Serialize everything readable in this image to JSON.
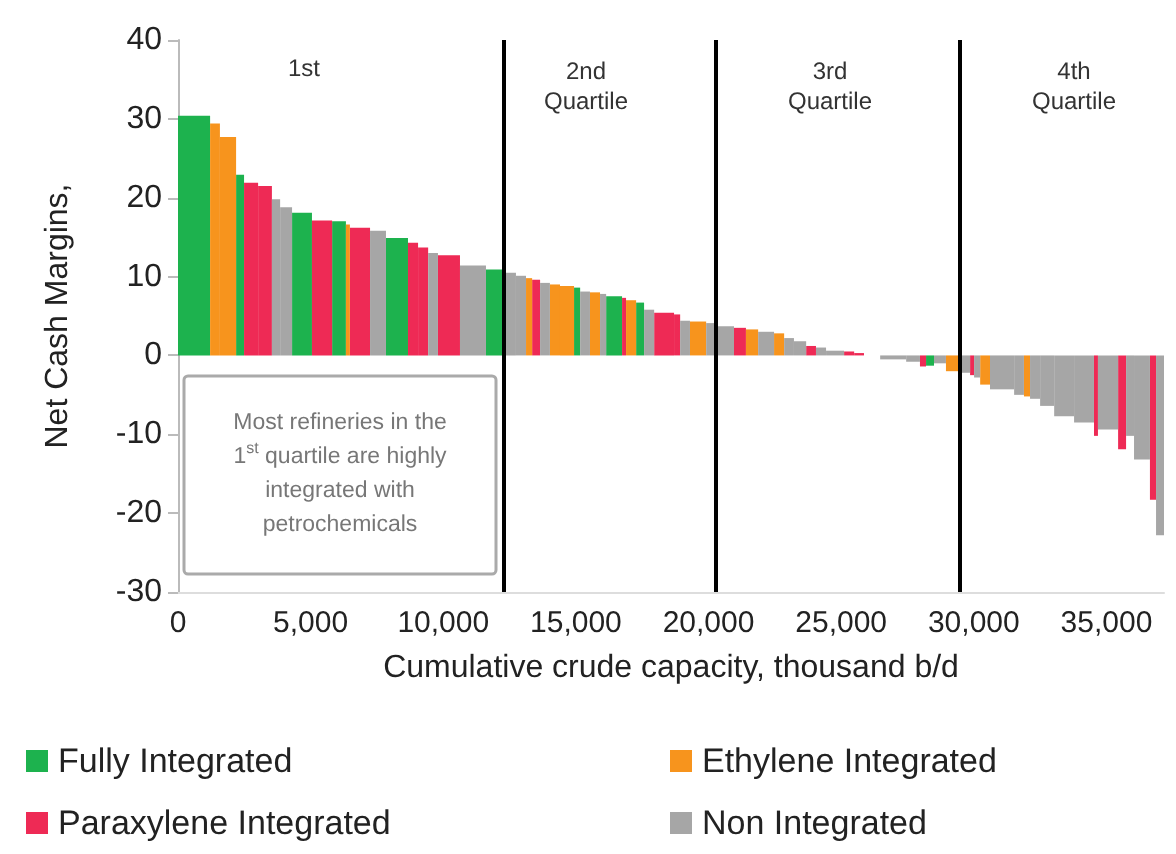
{
  "chart_data": {
    "type": "histogram",
    "ylabel": "Net Cash Margins,",
    "xlabel": "Cumulative crude capacity, thousand b/d",
    "bins": [
      0,
      1210,
      1580,
      2190,
      2490,
      3020,
      3540,
      3850,
      4300,
      5050,
      5810,
      6330,
      6480,
      7240,
      7840,
      8670,
      9050,
      9430,
      9800,
      10630,
      11610,
      12290,
      12740,
      13120,
      13350,
      13650,
      14020,
      14400,
      14930,
      15160,
      15530,
      15910,
      16140,
      16740,
      16890,
      17270,
      17570,
      17950,
      18700,
      18930,
      19300,
      19910,
      20280,
      20960,
      21410,
      21870,
      22470,
      22850,
      23220,
      23680,
      24050,
      24430,
      25110,
      25490,
      25860,
      26470,
      27450,
      27970,
      28200,
      28500,
      28950,
      29410,
      29860,
      30010,
      30240,
      30610,
      31520,
      31890,
      32120,
      32500,
      33030,
      33780,
      34530,
      34680,
      35440,
      35740,
      36040,
      36640,
      36870,
      37170
    ],
    "series": [
      {
        "name": "Fully Integrated",
        "color": "#1db24e",
        "values": [
          30.4,
          null,
          null,
          22.9,
          null,
          null,
          null,
          null,
          18.1,
          null,
          17,
          null,
          null,
          null,
          14.9,
          null,
          null,
          null,
          null,
          null,
          10.9,
          null,
          null,
          null,
          null,
          null,
          null,
          null,
          8.6,
          null,
          null,
          null,
          7.5,
          null,
          null,
          6.7,
          null,
          null,
          null,
          null,
          null,
          null,
          null,
          null,
          null,
          null,
          null,
          null,
          null,
          null,
          null,
          null,
          null,
          null,
          null,
          null,
          null,
          null,
          -1.3,
          null,
          null,
          null,
          null,
          null,
          null,
          null,
          null,
          null,
          null,
          null,
          null,
          null,
          null,
          null,
          null,
          null,
          null,
          null,
          null
        ]
      },
      {
        "name": "Paraxylene Integrated",
        "color": "#ee2a55",
        "values": [
          null,
          null,
          null,
          null,
          21.9,
          21.5,
          null,
          null,
          null,
          17.1,
          null,
          null,
          16.2,
          null,
          null,
          14.3,
          13.7,
          null,
          12.7,
          null,
          null,
          null,
          null,
          null,
          9.6,
          null,
          null,
          null,
          null,
          null,
          null,
          null,
          null,
          7.3,
          null,
          null,
          null,
          5.4,
          5.2,
          null,
          null,
          null,
          null,
          3.5,
          null,
          null,
          null,
          null,
          null,
          1.2,
          null,
          null,
          0.5,
          0.3,
          null,
          null,
          null,
          -1.4,
          null,
          null,
          null,
          null,
          -2.5,
          null,
          null,
          null,
          null,
          null,
          null,
          null,
          null,
          null,
          -10.2,
          null,
          -11.9,
          null,
          null,
          -18.3,
          null
        ]
      },
      {
        "name": "Ethylene Integrated",
        "color": "#f7941d",
        "values": [
          null,
          29.4,
          27.7,
          null,
          null,
          null,
          null,
          null,
          null,
          null,
          null,
          16.6,
          null,
          null,
          null,
          null,
          null,
          null,
          null,
          null,
          null,
          null,
          null,
          9.8,
          null,
          null,
          9,
          8.8,
          null,
          null,
          8,
          null,
          null,
          null,
          7,
          null,
          null,
          null,
          null,
          null,
          4.3,
          null,
          null,
          null,
          3.3,
          null,
          2.8,
          null,
          null,
          null,
          null,
          null,
          null,
          null,
          null,
          null,
          null,
          null,
          null,
          null,
          -2,
          null,
          null,
          null,
          -3.7,
          null,
          null,
          -5.2,
          null,
          null,
          null,
          null,
          null,
          null,
          null,
          null,
          null,
          null,
          null
        ]
      },
      {
        "name": "Non Integrated",
        "color": "#a6a6a6",
        "values": [
          null,
          null,
          null,
          null,
          null,
          null,
          19.8,
          18.8,
          null,
          null,
          null,
          null,
          null,
          15.8,
          null,
          null,
          null,
          13,
          null,
          11.4,
          null,
          10.5,
          10.1,
          null,
          null,
          9.2,
          null,
          null,
          null,
          8.1,
          null,
          7.8,
          null,
          null,
          null,
          null,
          5.8,
          null,
          null,
          4.4,
          null,
          4.1,
          3.7,
          null,
          null,
          3,
          null,
          2.2,
          1.8,
          null,
          1,
          0.6,
          null,
          null,
          null,
          -0.5,
          -0.8,
          null,
          null,
          -1,
          null,
          -2.2,
          null,
          -2.8,
          null,
          -4.3,
          -5,
          null,
          -5.5,
          -6.4,
          -7.7,
          -8.5,
          null,
          -9.4,
          null,
          -10.2,
          -13.2,
          null,
          -22.8
        ]
      }
    ],
    "xlim": [
      0,
      37170
    ],
    "ylim": [
      -30,
      40
    ],
    "xticks": [
      0,
      {
        "value": 5000,
        "label": "5,000"
      },
      {
        "value": 10000,
        "label": "10,000"
      },
      {
        "value": 15000,
        "label": "15,000"
      },
      {
        "value": 20000,
        "label": "20,000"
      },
      {
        "value": 25000,
        "label": "25,000"
      },
      {
        "value": 30000,
        "label": "30,000"
      },
      {
        "value": 35000,
        "label": "35,000"
      }
    ],
    "yticks": [
      -30,
      -20,
      -10,
      0,
      10,
      20,
      30,
      40
    ],
    "ref_lines": [
      {
        "axis": "x",
        "value": 12290,
        "color": "#000000"
      },
      {
        "axis": "x",
        "value": 20300,
        "color": "#000000"
      },
      {
        "axis": "x",
        "value": 29480,
        "color": "#000000"
      }
    ],
    "annotations": [
      "1st",
      "2nd\nQuartile",
      "3rd\nQuartile",
      "4th\nQuartile",
      "Most refineries in the 1$^{st}$ quartile are highly integrated with petrochemicals"
    ],
    "legend": "bottom",
    "grid": false
  }
}
